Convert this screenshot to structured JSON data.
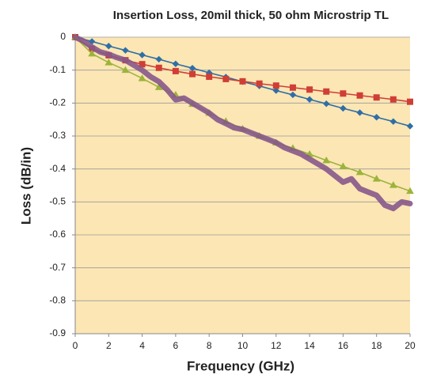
{
  "chart_data": {
    "type": "line",
    "title": "Insertion Loss, 20mil thick, 50 ohm Microstrip TL",
    "x_label": "Frequency (GHz)",
    "y_label": "Loss (dB/in)",
    "xlim": [
      0,
      20
    ],
    "xticks": [
      0,
      2,
      4,
      6,
      8,
      10,
      12,
      14,
      16,
      18,
      20
    ],
    "ylim": [
      -0.9,
      0
    ],
    "yticks": [
      0,
      -0.1,
      -0.2,
      -0.3,
      -0.4,
      -0.5,
      -0.6,
      -0.7,
      -0.8,
      -0.9
    ],
    "grid": true,
    "background": "#fce6b4",
    "series": [
      {
        "color": "#2f6fa6",
        "marker": "diamond",
        "x": [
          0,
          1,
          2,
          3,
          4,
          5,
          6,
          7,
          8,
          9,
          10,
          11,
          12,
          13,
          14,
          15,
          16,
          17,
          18,
          19,
          20
        ],
        "values": [
          0,
          -0.013,
          -0.027,
          -0.04,
          -0.054,
          -0.067,
          -0.081,
          -0.094,
          -0.108,
          -0.121,
          -0.135,
          -0.148,
          -0.162,
          -0.175,
          -0.189,
          -0.202,
          -0.216,
          -0.229,
          -0.243,
          -0.256,
          -0.27
        ]
      },
      {
        "color": "#cf3f35",
        "marker": "square",
        "x": [
          0,
          1,
          2,
          3,
          4,
          5,
          6,
          7,
          8,
          9,
          10,
          11,
          12,
          13,
          14,
          15,
          16,
          17,
          18,
          19,
          20
        ],
        "values": [
          0,
          -0.035,
          -0.055,
          -0.07,
          -0.082,
          -0.093,
          -0.103,
          -0.112,
          -0.12,
          -0.127,
          -0.134,
          -0.141,
          -0.147,
          -0.153,
          -0.159,
          -0.165,
          -0.171,
          -0.177,
          -0.183,
          -0.189,
          -0.196
        ]
      },
      {
        "color": "#9bb43a",
        "marker": "triangle",
        "x": [
          0,
          1,
          2,
          3,
          4,
          5,
          6,
          7,
          8,
          9,
          10,
          11,
          12,
          13,
          14,
          15,
          16,
          17,
          18,
          19,
          20
        ],
        "values": [
          0,
          -0.05,
          -0.077,
          -0.1,
          -0.125,
          -0.152,
          -0.175,
          -0.203,
          -0.23,
          -0.255,
          -0.278,
          -0.3,
          -0.32,
          -0.337,
          -0.355,
          -0.374,
          -0.392,
          -0.41,
          -0.43,
          -0.449,
          -0.467
        ]
      },
      {
        "color": "#86588a",
        "marker": "none",
        "x": [
          0,
          0.5,
          1,
          1.5,
          2,
          2.5,
          3,
          3.5,
          4,
          4.5,
          5,
          5.5,
          6,
          6.5,
          7,
          7.5,
          8,
          8.5,
          9,
          9.5,
          10,
          10.5,
          11,
          11.5,
          12,
          12.5,
          13,
          13.5,
          14,
          14.5,
          15,
          15.5,
          16,
          16.5,
          17,
          17.5,
          18,
          18.5,
          19,
          19.5,
          20
        ],
        "values": [
          0,
          -0.012,
          -0.03,
          -0.045,
          -0.052,
          -0.062,
          -0.07,
          -0.085,
          -0.1,
          -0.12,
          -0.135,
          -0.16,
          -0.19,
          -0.185,
          -0.2,
          -0.215,
          -0.23,
          -0.25,
          -0.262,
          -0.275,
          -0.28,
          -0.29,
          -0.3,
          -0.31,
          -0.32,
          -0.335,
          -0.345,
          -0.355,
          -0.37,
          -0.385,
          -0.4,
          -0.42,
          -0.44,
          -0.43,
          -0.46,
          -0.47,
          -0.48,
          -0.51,
          -0.52,
          -0.5,
          -0.505
        ]
      }
    ]
  }
}
